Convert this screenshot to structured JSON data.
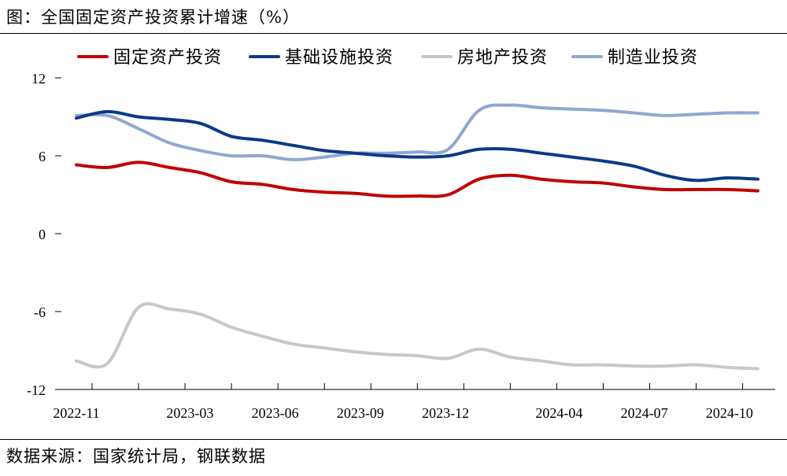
{
  "figure": {
    "title": "图：全国固定资产投资累计增速（%）",
    "source": "数据来源：国家统计局，钢联数据"
  },
  "chart_data": {
    "type": "line",
    "title": "全国固定资产投资累计增速（%）",
    "xlabel": "",
    "ylabel": "%",
    "ylim": [
      -12,
      12
    ],
    "yticks": [
      "12",
      "6",
      "0",
      "-6",
      "-12"
    ],
    "ytick_values": [
      12,
      6,
      0,
      -6,
      -12
    ],
    "x_tick_labels": [
      "2022-11",
      "2023-03",
      "2023-06",
      "2023-09",
      "2023-12",
      "2024-04",
      "2024-07",
      "2024-10"
    ],
    "x_tick_positions": [
      0,
      4,
      7,
      10,
      13,
      17,
      20,
      23
    ],
    "x_count": 25,
    "legend": "top",
    "series": [
      {
        "name": "固定资产投资",
        "color": "#c00000",
        "values": [
          5.3,
          5.1,
          5.5,
          5.1,
          4.7,
          4.0,
          3.8,
          3.4,
          3.2,
          3.1,
          2.9,
          2.9,
          3.0,
          4.2,
          4.5,
          4.2,
          4.0,
          3.9,
          3.6,
          3.4,
          3.4,
          3.4,
          3.3
        ]
      },
      {
        "name": "基础设施投资",
        "color": "#0b3a86",
        "values": [
          8.9,
          9.4,
          9.0,
          8.8,
          8.5,
          7.5,
          7.2,
          6.8,
          6.4,
          6.2,
          6.0,
          5.9,
          6.0,
          6.5,
          6.5,
          6.2,
          5.9,
          5.6,
          5.2,
          4.5,
          4.1,
          4.3,
          4.2
        ]
      },
      {
        "name": "房地产投资",
        "color": "#c8c8c8",
        "values": [
          -9.8,
          -10.0,
          -5.7,
          -5.8,
          -6.2,
          -7.2,
          -7.9,
          -8.5,
          -8.8,
          -9.1,
          -9.3,
          -9.4,
          -9.6,
          -8.9,
          -9.5,
          -9.8,
          -10.1,
          -10.1,
          -10.2,
          -10.2,
          -10.1,
          -10.3,
          -10.4
        ]
      },
      {
        "name": "制造业投资",
        "color": "#8fa8d0",
        "values": [
          9.1,
          9.1,
          8.1,
          7.0,
          6.4,
          6.0,
          6.0,
          5.7,
          5.9,
          6.2,
          6.2,
          6.3,
          6.5,
          9.5,
          9.9,
          9.7,
          9.6,
          9.5,
          9.3,
          9.1,
          9.2,
          9.3,
          9.3
        ]
      }
    ]
  }
}
